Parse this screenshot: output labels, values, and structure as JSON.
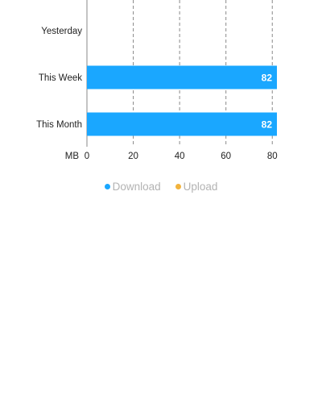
{
  "chart_data": {
    "type": "bar",
    "orientation": "horizontal",
    "xlabel": "MB",
    "categories": [
      "Yesterday",
      "This Week",
      "This Month"
    ],
    "series": [
      {
        "name": "Download",
        "values": [
          0,
          82,
          82
        ],
        "color": "#1aa7ff"
      },
      {
        "name": "Upload",
        "values": [
          0,
          0,
          0
        ],
        "color": "#f2b33d"
      }
    ],
    "xlim": [
      0,
      82
    ],
    "xticks": [
      0,
      20,
      40,
      60,
      80
    ],
    "tick_labels": [
      "0",
      "20",
      "40",
      "60",
      "80"
    ],
    "data_labels": [
      "",
      "82",
      "82"
    ],
    "grid": true,
    "legend": "bottom"
  }
}
